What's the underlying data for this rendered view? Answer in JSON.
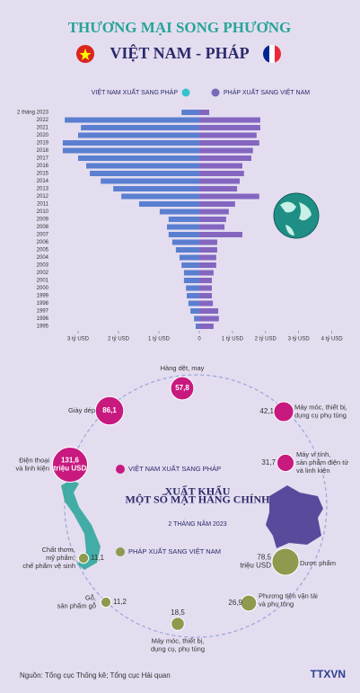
{
  "header": {
    "title": "THƯƠNG MẠI SONG PHƯƠNG",
    "subtitle": "VIỆT NAM - PHÁP"
  },
  "footer": {
    "source": "Nguồn: Tổng cục Thống kê; Tổng cục Hải quan",
    "logo": "TTXVN"
  },
  "chart_data": [
    {
      "type": "butterfly",
      "categories": [
        "2 tháng 2023",
        "2022",
        "2021",
        "2020",
        "2019",
        "2018",
        "2017",
        "2016",
        "2015",
        "2014",
        "2013",
        "2012",
        "2011",
        "2010",
        "2009",
        "2008",
        "2007",
        "2006",
        "2005",
        "2004",
        "2003",
        "2002",
        "2001",
        "2000",
        "1999",
        "1998",
        "1997",
        "1996",
        "1995"
      ],
      "series": [
        {
          "name": "VIỆT NAM XUẤT SANG PHÁP",
          "color": "#5b7fd0",
          "side": "left",
          "legend_color": "#35c3cf",
          "values": [
            0.44,
            3.33,
            2.93,
            3.0,
            3.38,
            3.38,
            3.0,
            2.8,
            2.71,
            2.44,
            2.13,
            1.93,
            1.49,
            0.98,
            0.76,
            0.8,
            0.76,
            0.67,
            0.58,
            0.49,
            0.44,
            0.38,
            0.38,
            0.33,
            0.31,
            0.27,
            0.22,
            0.13,
            0.09
          ],
          "xlim": [
            0,
            3.4
          ],
          "xticks": [
            {
              "value": 3,
              "label": "3 tỷ USD"
            },
            {
              "value": 2,
              "label": "2 tỷ USD"
            },
            {
              "value": 1,
              "label": "1 tỷ USD"
            },
            0
          ]
        },
        {
          "name": "PHÁP XUẤT SANG VIỆT NAM",
          "color": "#8466c0",
          "side": "right",
          "legend_color": "#7a68b8",
          "values": [
            0.3,
            1.84,
            1.84,
            1.73,
            1.81,
            1.62,
            1.57,
            1.3,
            1.35,
            1.22,
            1.14,
            1.81,
            1.08,
            0.89,
            0.81,
            0.76,
            1.3,
            0.54,
            0.54,
            0.51,
            0.51,
            0.43,
            0.38,
            0.38,
            0.38,
            0.41,
            0.57,
            0.59,
            0.43
          ],
          "xlim": [
            0,
            4.2
          ],
          "xticks": [
            {
              "value": 1,
              "label": "1 tỷ USD"
            },
            {
              "value": 2,
              "label": "2 tỷ USD"
            },
            {
              "value": 3,
              "label": "3 tỷ USD"
            },
            {
              "value": 4,
              "label": "4 tỷ USD"
            }
          ]
        }
      ]
    },
    {
      "type": "bubble",
      "title": "XUẤT KHẨU\nMỘT SỐ MẶT HÀNG CHÍNH",
      "subtitle": "2 THÁNG NĂM 2023",
      "series": [
        {
          "name": "VIỆT NAM XUẤT SANG PHÁP",
          "color": "#c8197f",
          "categories": [
            "Hàng dệt, may",
            "Giày dép",
            "Điện thoại\nvà linh kiện",
            "Máy móc, thiết bị,\ndụng cụ phụ tùng",
            "Máy vi tính,\nsản phẩm điện tử\nvà linh kiện"
          ],
          "values": [
            57.8,
            86.1,
            131.6,
            42.1,
            31.7
          ],
          "value_labels": [
            "57,8",
            "86,1",
            "131,6\ntriệu USD",
            "42,1",
            "31,7"
          ]
        },
        {
          "name": "PHÁP XUẤT SANG VIỆT NAM",
          "color": "#8f9a4e",
          "categories": [
            "Dược phẩm",
            "Phương tiện vận tải\nvà phụ tùng",
            "Máy móc, thiết bị,\ndụng cụ, phụ tùng",
            "Gỗ,\nsản phẩm gỗ",
            "Chất thơm,\nmỹ phẩm,\nchế phẩm vệ sinh"
          ],
          "values": [
            78.5,
            26.9,
            18.5,
            11.2,
            11.1
          ],
          "value_labels": [
            "78,5\ntriệu USD",
            "26,9",
            "18,5",
            "11,2",
            "11,1"
          ]
        }
      ]
    }
  ]
}
